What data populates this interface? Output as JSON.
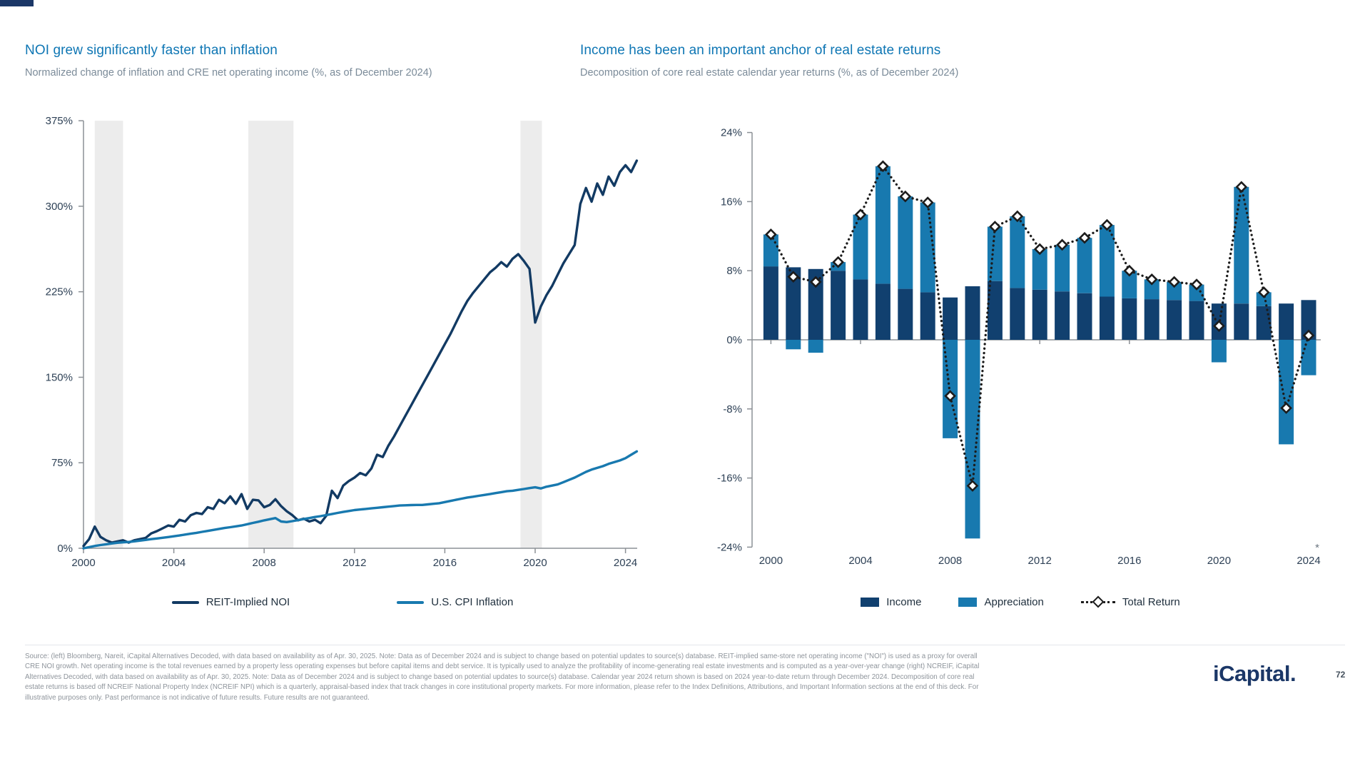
{
  "page": {
    "accent_bar_color": "#1b3767",
    "background": "#ffffff"
  },
  "left_chart": {
    "title": "NOI grew significantly faster than inflation",
    "subtitle": "Normalized change of inflation and CRE net operating income (%, as of December 2024)",
    "legend": [
      {
        "label": "REIT-Implied NOI",
        "color": "#123a63",
        "type": "line"
      },
      {
        "label": "U.S. CPI Inflation",
        "color": "#1879af",
        "type": "line"
      }
    ],
    "chart_data": {
      "type": "line",
      "title": "NOI grew significantly faster than inflation",
      "xlabel": "",
      "ylabel": "",
      "x_start": 2000.0,
      "x_step": 0.25,
      "x_end": 2024.5,
      "ylim": [
        0,
        375
      ],
      "yticks": [
        0,
        75,
        150,
        225,
        300,
        375
      ],
      "ytick_labels": [
        "0%",
        "75%",
        "150%",
        "225%",
        "300%",
        "375%"
      ],
      "xticks": [
        2000,
        2004,
        2008,
        2012,
        2016,
        2020,
        2024
      ],
      "grid": false,
      "recession_bands": [
        [
          2000.5,
          2001.75
        ],
        [
          2007.3,
          2009.3
        ],
        [
          2019.35,
          2020.3
        ]
      ],
      "band_color": "#ececec",
      "series": [
        {
          "name": "REIT-Implied NOI",
          "color": "#123a63",
          "values": [
            2,
            8,
            19,
            10,
            7,
            5,
            6,
            7,
            5,
            7,
            8,
            9,
            13,
            15,
            17.5,
            20,
            19,
            25,
            23.5,
            29,
            31,
            30,
            36,
            34.5,
            42.5,
            39.5,
            45.5,
            39,
            47.5,
            34.5,
            42.5,
            42,
            36,
            38,
            43,
            37,
            32.5,
            29,
            24.5,
            26,
            23.5,
            25,
            22,
            28.5,
            50.5,
            44,
            55,
            59,
            62,
            66,
            64,
            70,
            82,
            80,
            90,
            98,
            107,
            116,
            125,
            134,
            143,
            152,
            161,
            170,
            179,
            188,
            198,
            208,
            217,
            224,
            230,
            236,
            242,
            246,
            251,
            247,
            254,
            258,
            252,
            245,
            198,
            212,
            222,
            230,
            240,
            250,
            258,
            266,
            302,
            316,
            304,
            320,
            310,
            326,
            318,
            330,
            336,
            330,
            340
          ]
        },
        {
          "name": "U.S. CPI Inflation",
          "color": "#1879af",
          "values": [
            0,
            1,
            2,
            2.8,
            3.5,
            4.2,
            4.8,
            5.2,
            5.5,
            6.1,
            6.7,
            7.3,
            8,
            8.6,
            9.2,
            9.8,
            10.5,
            11.2,
            12,
            12.8,
            13.5,
            14.4,
            15.2,
            16.1,
            17,
            17.8,
            18.5,
            19.2,
            20,
            21.1,
            22.2,
            23.3,
            24.5,
            25.5,
            26.5,
            23.5,
            23,
            23.8,
            24.7,
            25.6,
            26.5,
            27.4,
            28.2,
            29.1,
            30,
            31,
            31.9,
            32.7,
            33.5,
            34,
            34.5,
            35,
            35.5,
            36,
            36.5,
            37,
            37.5,
            37.7,
            37.9,
            38,
            38,
            38.5,
            39,
            39.5,
            40.5,
            41.5,
            42.5,
            43.5,
            44.5,
            45.2,
            46,
            46.8,
            47.5,
            48.4,
            49.2,
            50,
            50.5,
            51.2,
            52,
            52.8,
            53.5,
            52.5,
            54,
            55,
            56,
            58,
            60,
            62,
            64.5,
            67,
            69,
            70.5,
            72,
            74,
            75.5,
            77,
            79,
            82,
            85
          ]
        }
      ]
    }
  },
  "right_chart": {
    "title": "Income has been an important anchor of real estate returns",
    "subtitle": "Decomposition of core real estate calendar year returns (%, as of December 2024)",
    "footnote_marker": "*",
    "legend": [
      {
        "label": "Income",
        "color": "#11406f",
        "type": "square"
      },
      {
        "label": "Appreciation",
        "color": "#1879af",
        "type": "square"
      },
      {
        "label": "Total Return",
        "color": "#1c1c1c",
        "type": "dotted-diamond"
      }
    ],
    "chart_data": {
      "type": "bar",
      "stacked": true,
      "title": "Income has been an important anchor of real estate returns",
      "xlabel": "",
      "ylabel": "",
      "categories": [
        2000,
        2001,
        2002,
        2003,
        2004,
        2005,
        2006,
        2007,
        2008,
        2009,
        2010,
        2011,
        2012,
        2013,
        2014,
        2015,
        2016,
        2017,
        2018,
        2019,
        2020,
        2021,
        2022,
        2023,
        2024
      ],
      "ylim": [
        -24,
        24
      ],
      "yticks": [
        24,
        16,
        8,
        0,
        -8,
        -16,
        -24
      ],
      "ytick_labels": [
        "24%",
        "16%",
        "8%",
        "0%",
        "-8%",
        "-16%",
        "-24%"
      ],
      "xticks": [
        2000,
        2004,
        2008,
        2012,
        2016,
        2020,
        2024
      ],
      "grid": false,
      "legend_position": "bottom",
      "series": [
        {
          "name": "Income",
          "type": "bar",
          "color": "#11406f",
          "values": [
            8.5,
            8.4,
            8.2,
            8.0,
            7.0,
            6.5,
            5.9,
            5.5,
            4.9,
            6.2,
            6.8,
            6.0,
            5.8,
            5.6,
            5.4,
            5.0,
            4.8,
            4.7,
            4.6,
            4.5,
            4.2,
            4.2,
            3.9,
            4.2,
            4.6
          ]
        },
        {
          "name": "Appreciation",
          "type": "bar",
          "color": "#1879af",
          "values": [
            3.7,
            -1.1,
            -1.5,
            1.0,
            7.5,
            13.6,
            10.7,
            10.4,
            -11.4,
            -23.0,
            6.3,
            8.3,
            4.7,
            5.4,
            6.4,
            8.3,
            3.2,
            2.3,
            2.1,
            1.9,
            -2.6,
            13.5,
            1.6,
            -12.1,
            -4.1
          ]
        },
        {
          "name": "Total Return",
          "type": "line",
          "color": "#1c1c1c",
          "marker": "diamond",
          "values": [
            12.2,
            7.3,
            6.7,
            9.0,
            14.5,
            20.1,
            16.6,
            15.9,
            -6.5,
            -16.9,
            13.1,
            14.3,
            10.5,
            11.0,
            11.8,
            13.3,
            8.0,
            7.0,
            6.7,
            6.4,
            1.6,
            17.7,
            5.5,
            -7.9,
            0.5
          ]
        }
      ]
    }
  },
  "footer": {
    "source_text": "Source: (left) Bloomberg, Nareit, iCapital Alternatives Decoded, with data based on availability as of Apr. 30, 2025. Note: Data as of December 2024 and is subject to change based on potential updates to source(s) database. REIT-implied same-store net operating income (\"NOI\") is used as a proxy for overall CRE NOI growth. Net operating income is the total revenues earned by a property less operating expenses but before capital items and debt service. It is typically used to analyze the profitability of income-generating real estate investments and is computed as a year-over-year change (right) NCREIF, iCapital Alternatives Decoded, with data based on availability as of Apr. 30, 2025. Note: Data as of December 2024 and is subject to change based on potential updates to source(s) database. Calendar year 2024 return shown is based on 2024 year-to-date return through December 2024. Decomposition of core real estate returns is based off NCREIF National Property Index  (NCREIF NPI) which is a quarterly, appraisal-based index that track changes in core institutional property markets. For more information, please refer to the Index Definitions, Attributions, and Important Information sections at the end of this deck. For illustrative purposes only. Past performance is not indicative of future results. Future results are not guaranteed.",
    "logo_text": "iCapital.",
    "page_number": "72"
  }
}
